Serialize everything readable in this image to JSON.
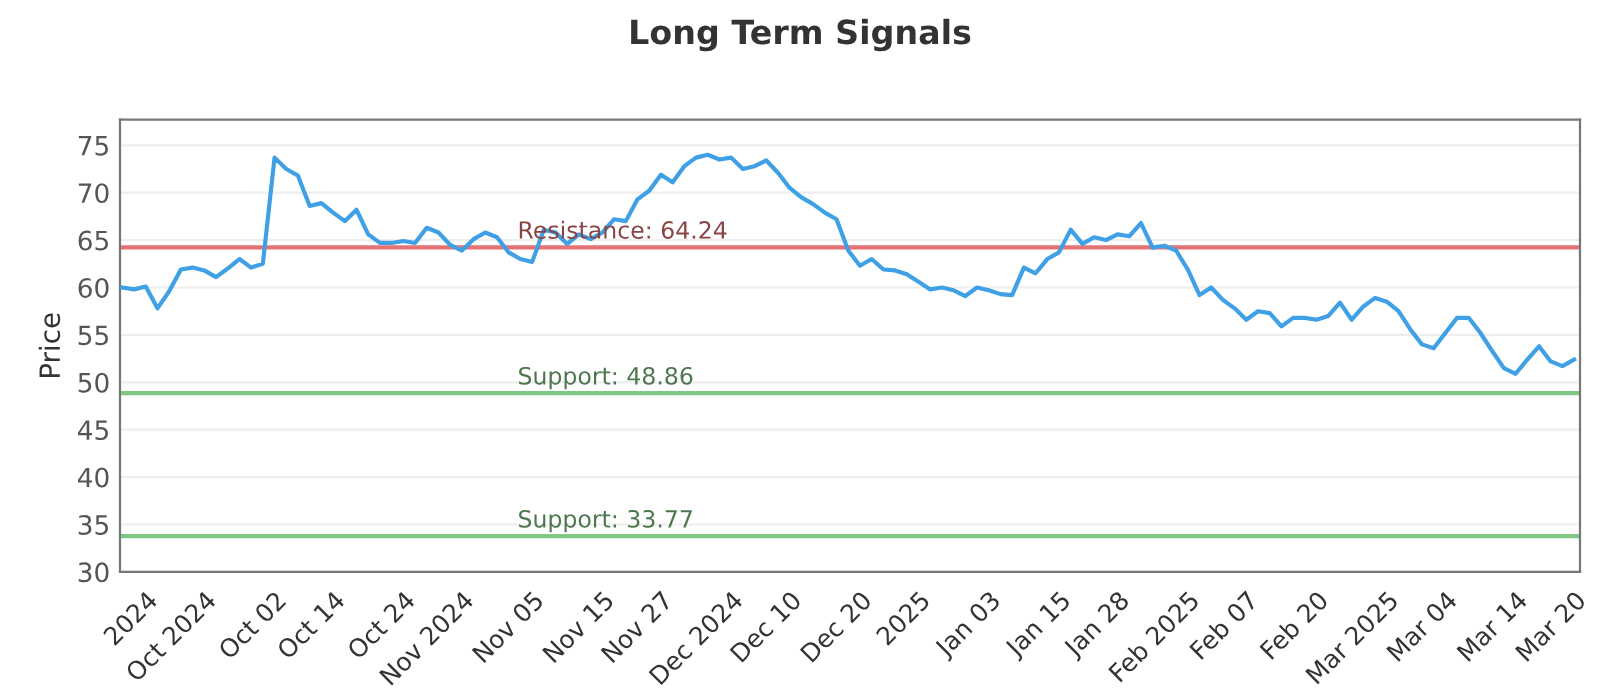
{
  "chart_data": {
    "type": "line",
    "title": "Long Term Signals",
    "ylabel": "Price",
    "categories": [
      null,
      null,
      "2024",
      null,
      null,
      null,
      null,
      "Oct 2024",
      null,
      null,
      null,
      null,
      null,
      "Oct 02",
      null,
      null,
      null,
      null,
      "Oct 14",
      null,
      null,
      null,
      null,
      null,
      "Oct 24",
      null,
      null,
      null,
      null,
      "Nov 2024",
      null,
      null,
      null,
      null,
      null,
      "Nov 05",
      null,
      null,
      null,
      null,
      null,
      "Nov 15",
      null,
      null,
      null,
      null,
      "Nov 27",
      null,
      null,
      null,
      null,
      null,
      "Dec 2024",
      null,
      null,
      null,
      null,
      "Dec 10",
      null,
      null,
      null,
      null,
      null,
      "Dec 20",
      null,
      null,
      null,
      null,
      "2025",
      null,
      null,
      null,
      null,
      null,
      "Jan 03",
      null,
      null,
      null,
      null,
      null,
      "Jan 15",
      null,
      null,
      null,
      null,
      "Jan 28",
      null,
      null,
      null,
      null,
      null,
      "Feb 2025",
      null,
      null,
      null,
      null,
      "Feb 07",
      null,
      null,
      null,
      null,
      null,
      "Feb 20",
      null,
      null,
      null,
      null,
      null,
      "Mar 2025",
      null,
      null,
      null,
      null,
      "Mar 04",
      null,
      null,
      null,
      null,
      null,
      "Mar 14",
      null,
      null,
      null,
      null,
      "Mar 20"
    ],
    "series": [
      {
        "color": "#3fa0e6",
        "values": [
          60.0,
          59.8,
          60.1,
          57.8,
          59.6,
          61.9,
          62.1,
          61.8,
          61.1,
          62.0,
          63.0,
          62.1,
          62.5,
          73.7,
          72.5,
          71.8,
          68.6,
          68.9,
          67.9,
          67.0,
          68.2,
          65.6,
          64.7,
          64.7,
          64.9,
          64.7,
          66.3,
          65.8,
          64.5,
          63.9,
          65.1,
          65.8,
          65.3,
          63.7,
          63.0,
          62.7,
          66.1,
          65.8,
          64.6,
          65.6,
          65.1,
          65.8,
          67.2,
          67.0,
          69.3,
          70.2,
          71.9,
          71.1,
          72.8,
          73.7,
          74.0,
          73.5,
          73.7,
          72.5,
          72.8,
          73.4,
          72.1,
          70.5,
          69.5,
          68.8,
          67.9,
          67.2,
          63.9,
          62.3,
          63.0,
          61.9,
          61.8,
          61.4,
          60.6,
          59.8,
          60.0,
          59.7,
          59.1,
          60.0,
          59.7,
          59.3,
          59.2,
          62.1,
          61.5,
          63.0,
          63.7,
          66.1,
          64.6,
          65.3,
          65.0,
          65.6,
          65.4,
          66.8,
          64.2,
          64.4,
          63.9,
          61.9,
          59.2,
          60.0,
          58.7,
          57.8,
          56.6,
          57.5,
          57.3,
          55.9,
          56.8,
          56.8,
          56.6,
          57.0,
          58.4,
          56.6,
          58.0,
          58.9,
          58.5,
          57.5,
          55.6,
          54.0,
          53.6,
          55.2,
          56.8,
          56.8,
          55.2,
          53.3,
          51.5,
          50.9,
          52.4,
          53.8,
          52.2,
          51.7,
          52.4
        ]
      }
    ],
    "ylim": [
      30,
      77.7
    ],
    "yticks": [
      30,
      35,
      40,
      45,
      50,
      55,
      60,
      65,
      70,
      75
    ],
    "grid": "y",
    "marker": "none",
    "line_style": "solid",
    "legend": false,
    "ref_lines": [
      {
        "axis": "y",
        "value": 64.24,
        "label": "Resistance: 64.24",
        "color": "#e57373"
      },
      {
        "axis": "y",
        "value": 48.86,
        "label": "Support: 48.86",
        "color": "#81c784"
      },
      {
        "axis": "y",
        "value": 33.77,
        "label": "Support: 33.77",
        "color": "#81c784"
      }
    ]
  }
}
